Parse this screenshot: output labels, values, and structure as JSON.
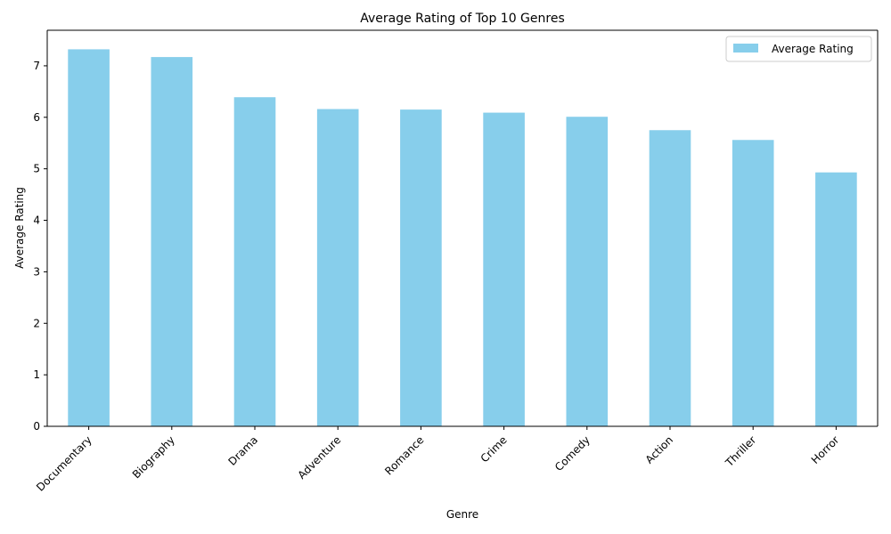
{
  "chart_data": {
    "type": "bar",
    "title": "Average Rating of Top 10 Genres",
    "xlabel": "Genre",
    "ylabel": "Average Rating",
    "categories": [
      "Documentary",
      "Biography",
      "Drama",
      "Adventure",
      "Romance",
      "Crime",
      "Comedy",
      "Action",
      "Thriller",
      "Horror"
    ],
    "series": [
      {
        "name": "Average Rating",
        "values": [
          7.32,
          7.17,
          6.39,
          6.16,
          6.15,
          6.09,
          6.01,
          5.75,
          5.56,
          4.93
        ]
      }
    ],
    "ylim": [
      0,
      7.69
    ],
    "yticks": [
      0,
      1,
      2,
      3,
      4,
      5,
      6,
      7
    ],
    "grid": false,
    "legend_position": "top-right",
    "colors": {
      "bar": "#87ceeb",
      "axis": "#000000",
      "background": "#ffffff"
    }
  }
}
